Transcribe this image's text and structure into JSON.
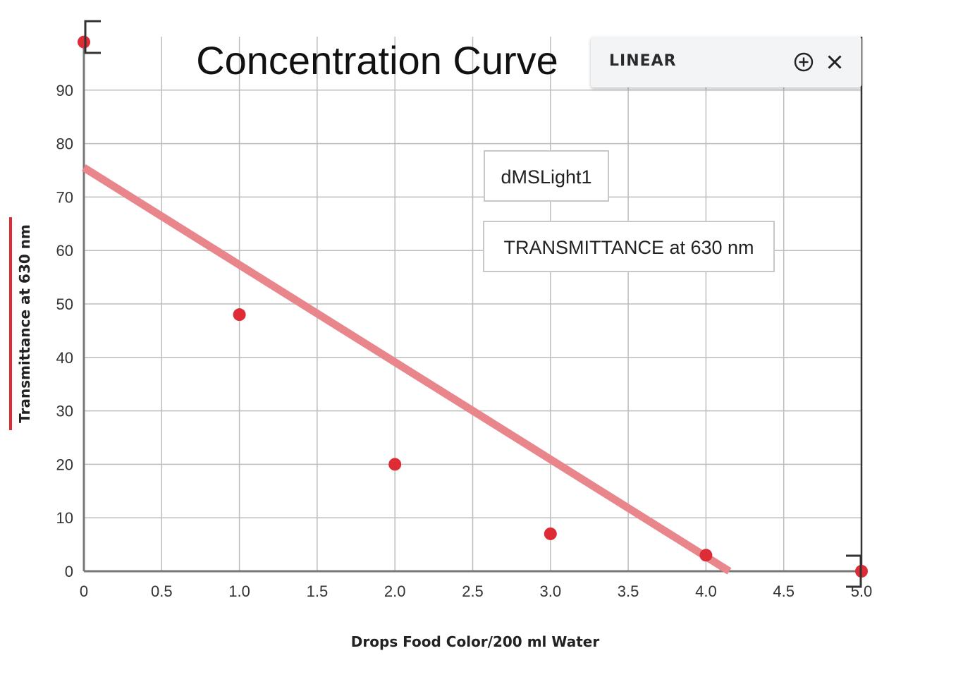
{
  "chart_data": {
    "type": "scatter",
    "title": "Concentration Curve",
    "xlabel": "Drops Food Color/200 ml Water",
    "ylabel": "Transmittance at 630 nm",
    "xlim": [
      0,
      5
    ],
    "ylim": [
      0,
      100
    ],
    "x_ticks": [
      "0",
      "0.5",
      "1.0",
      "1.5",
      "2.0",
      "2.5",
      "3.0",
      "3.5",
      "4.0",
      "4.5",
      "5.0"
    ],
    "y_ticks": [
      "0",
      "10",
      "20",
      "30",
      "40",
      "50",
      "60",
      "70",
      "80",
      "90"
    ],
    "grid": true,
    "series": [
      {
        "name": "TRANSMITTANCE at 630 nm",
        "x": [
          0,
          1,
          2,
          3,
          4,
          5
        ],
        "y": [
          99,
          48,
          20,
          7,
          3,
          0
        ],
        "color": "#dd2c35"
      }
    ],
    "fit": {
      "type": "linear",
      "x": [
        0,
        4.15
      ],
      "y": [
        75.5,
        0
      ],
      "color": "#e8868c"
    },
    "legend": {
      "source": "dMSLight1",
      "series": "TRANSMITTANCE at 630 nm"
    }
  },
  "fit_panel": {
    "label": "LINEAR",
    "add_icon": "plus-circle-icon",
    "close_icon": "close-icon"
  },
  "colors": {
    "point": "#dd2c35",
    "fit_line": "#e8868c",
    "ylabel_bar": "#dd2c35",
    "grid": "#bdbdbd"
  }
}
